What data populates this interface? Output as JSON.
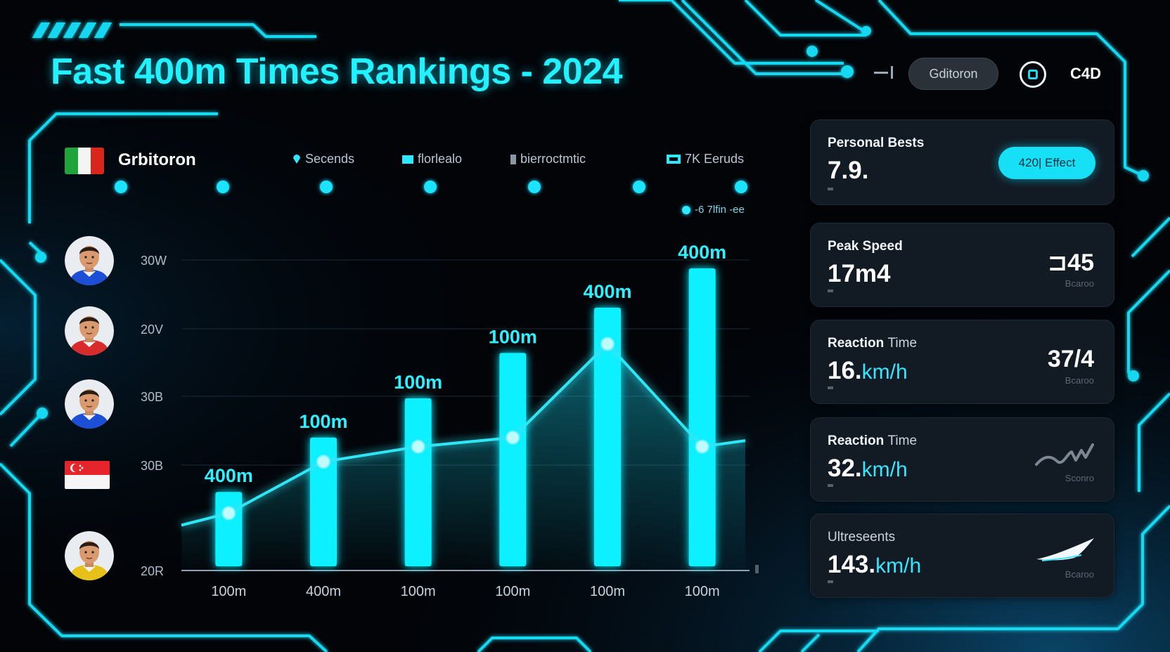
{
  "title": "Fast 400m Times Rankings - 2024",
  "header": {
    "pill_label": "Gditoron",
    "c4d_label": "C4D"
  },
  "chart_header": {
    "brand": "Grbitoron",
    "legend": [
      {
        "label": "Secends",
        "marker": "pin"
      },
      {
        "label": "florlealo",
        "marker": "square"
      },
      {
        "label": "bierroctmtic",
        "marker": "bar"
      },
      {
        "label": "7K Eeruds",
        "marker": "rect"
      }
    ],
    "subnote": "-6 7lfin -ee"
  },
  "athletes": [
    {
      "type": "avatar",
      "name": "athlete-1",
      "jersey": "#1d4fd6"
    },
    {
      "type": "avatar",
      "name": "athlete-2",
      "jersey": "#d82c2c"
    },
    {
      "type": "avatar",
      "name": "athlete-3",
      "jersey": "#1d4fd6"
    },
    {
      "type": "flag",
      "name": "singapore-flag"
    },
    {
      "type": "avatar",
      "name": "athlete-5",
      "jersey": "#e8c01a"
    }
  ],
  "chart_data": {
    "type": "bar",
    "categories": [
      "100m",
      "400m",
      "100m",
      "100m",
      "100m",
      "100m"
    ],
    "bar_labels": [
      "400m",
      "100m",
      "100m",
      "100m",
      "400m",
      "400m"
    ],
    "y_tick_labels": [
      "30W",
      "20V",
      "30B",
      "30B",
      "20R"
    ],
    "ylim": [
      0,
      100
    ],
    "series": [
      {
        "type": "bar",
        "values": [
          26,
          44,
          57,
          72,
          87,
          100
        ]
      },
      {
        "type": "line",
        "values": [
          19,
          36,
          41,
          44,
          75,
          41
        ]
      }
    ],
    "line_extend": {
      "start": 15,
      "end": 43
    },
    "grid": true,
    "colors": {
      "bar": "#0ff0ff",
      "line": "#2ee6f5",
      "point": "#bffaff"
    }
  },
  "cards": [
    {
      "label": "Personal Bests",
      "value": "7.9.",
      "button": "420| Effect"
    },
    {
      "label": "Peak Speed",
      "value": "17m4",
      "big": "⊐45",
      "small": "Bcaroo"
    },
    {
      "label": "Reaction",
      "label_light": "Time",
      "value": "16.",
      "unit": "km/h",
      "big": "37/4",
      "small": "Bcaroo"
    },
    {
      "label": "Reaction",
      "label_light": "Time",
      "value": "32.",
      "unit": "km/h",
      "small": "Sconro",
      "icon": "sparkline-icon"
    },
    {
      "label": "Ultreseents",
      "value": "143.",
      "unit": "km/h",
      "small": "Bcaroo",
      "icon": "wing-icon"
    }
  ]
}
